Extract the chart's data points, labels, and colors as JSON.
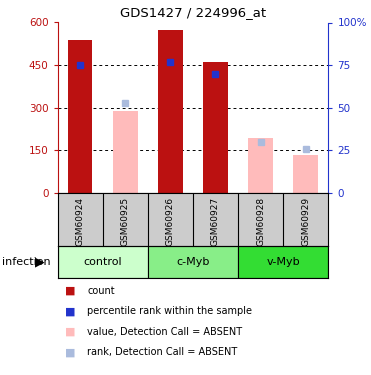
{
  "title": "GDS1427 / 224996_at",
  "samples": [
    "GSM60924",
    "GSM60925",
    "GSM60926",
    "GSM60927",
    "GSM60928",
    "GSM60929"
  ],
  "groups": [
    {
      "label": "control",
      "color": "#ccffcc",
      "samples": [
        0,
        1
      ]
    },
    {
      "label": "c-Myb",
      "color": "#88ee88",
      "samples": [
        2,
        3
      ]
    },
    {
      "label": "v-Myb",
      "color": "#33dd33",
      "samples": [
        4,
        5
      ]
    }
  ],
  "group_label": "infection",
  "bar_color_present": "#bb1111",
  "bar_color_absent": "#ffbbbb",
  "dot_color_present": "#2233cc",
  "dot_color_absent": "#aabbdd",
  "ylim_left": [
    0,
    600
  ],
  "ylim_right": [
    0,
    100
  ],
  "yticks_left": [
    0,
    150,
    300,
    450,
    600
  ],
  "yticks_right": [
    0,
    25,
    50,
    75,
    100
  ],
  "grid_yticks": [
    150,
    300,
    450
  ],
  "count_values": [
    540,
    290,
    575,
    460,
    195,
    133
  ],
  "rank_values": [
    75,
    53,
    77,
    70,
    30,
    26
  ],
  "is_absent": [
    false,
    true,
    false,
    false,
    true,
    true
  ],
  "legend": [
    {
      "color": "#bb1111",
      "label": "count"
    },
    {
      "color": "#2233cc",
      "label": "percentile rank within the sample"
    },
    {
      "color": "#ffbbbb",
      "label": "value, Detection Call = ABSENT"
    },
    {
      "color": "#aabbdd",
      "label": "rank, Detection Call = ABSENT"
    }
  ],
  "sample_bg": "#cccccc",
  "plot_bg": "#ffffff",
  "fig_width": 3.71,
  "fig_height": 3.75,
  "dpi": 100
}
